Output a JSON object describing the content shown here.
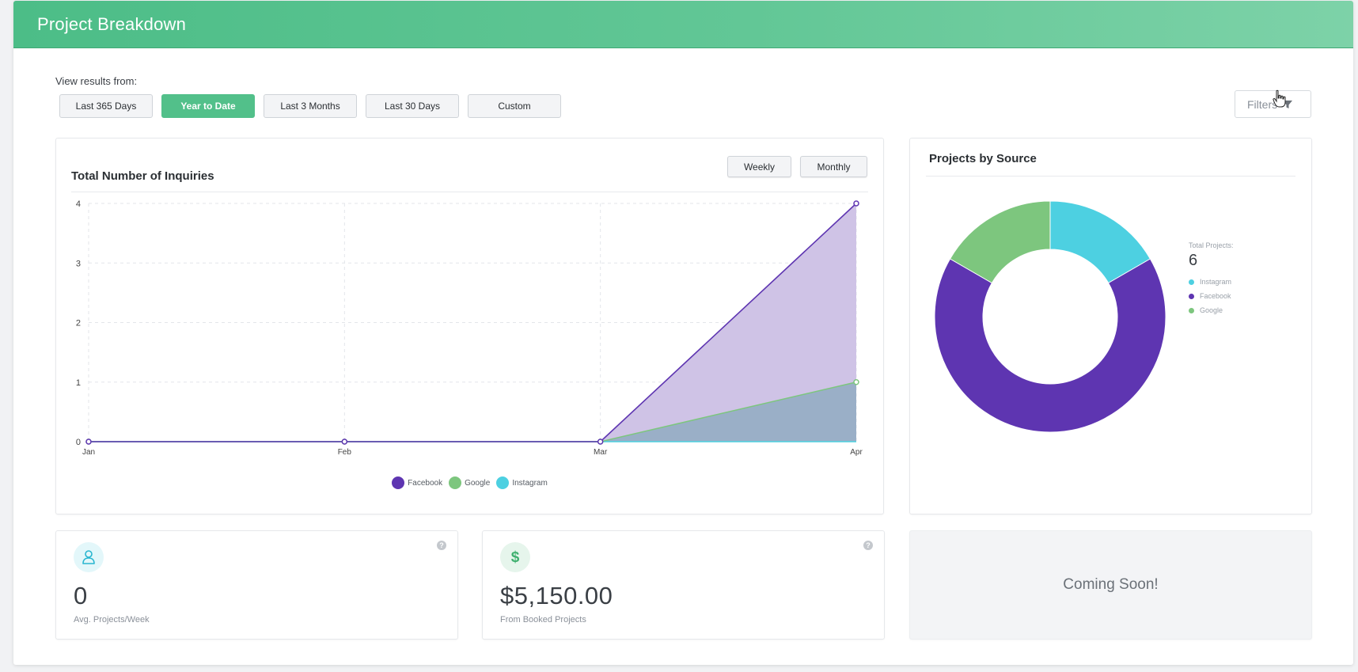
{
  "header": {
    "title": "Project Breakdown"
  },
  "view": {
    "label": "View results from:",
    "ranges": [
      {
        "label": "Last 365 Days",
        "active": false
      },
      {
        "label": "Year to Date",
        "active": true
      },
      {
        "label": "Last 3 Months",
        "active": false
      },
      {
        "label": "Last 30 Days",
        "active": false
      },
      {
        "label": "Custom",
        "active": false
      }
    ]
  },
  "filters": {
    "label": "Filters",
    "icon": "funnel-icon"
  },
  "inquiries": {
    "title": "Total Number of Inquiries",
    "weekly_label": "Weekly",
    "monthly_label": "Monthly"
  },
  "colors": {
    "brand": "#52c08a",
    "facebook": "#5e35b1",
    "google": "#7dc67e",
    "instagram": "#4dd0e1",
    "facebook_fill": "#cfc3e6",
    "overlap_fill": "#9aafc7"
  },
  "chart_data": [
    {
      "type": "area",
      "title": "Total Number of Inquiries",
      "x": [
        "Jan",
        "Feb",
        "Mar",
        "Apr"
      ],
      "y_ticks": [
        "0",
        "1",
        "2",
        "3",
        "4"
      ],
      "ylim": [
        0,
        4
      ],
      "grid": true,
      "legend_position": "bottom",
      "series": [
        {
          "name": "Facebook",
          "values": [
            0,
            0,
            0,
            4
          ]
        },
        {
          "name": "Google",
          "values": [
            0,
            0,
            0,
            1
          ]
        },
        {
          "name": "Instagram",
          "values": [
            0,
            0,
            0,
            0
          ]
        }
      ]
    },
    {
      "type": "pie",
      "title": "Projects by Source",
      "donut": true,
      "total_label": "Total Projects:",
      "total_value": "6",
      "legend_position": "right",
      "slices": [
        {
          "name": "Instagram",
          "value": 1
        },
        {
          "name": "Facebook",
          "value": 4
        },
        {
          "name": "Google",
          "value": 1
        }
      ]
    }
  ],
  "stats": {
    "projects_per_week": {
      "value": "0",
      "label": "Avg. Projects/Week",
      "icon": "user-icon"
    },
    "booked": {
      "value": "$5,150.00",
      "label": "From Booked Projects",
      "icon": "dollar-icon"
    },
    "help_glyph": "?"
  },
  "coming_soon": {
    "text": "Coming Soon!"
  }
}
